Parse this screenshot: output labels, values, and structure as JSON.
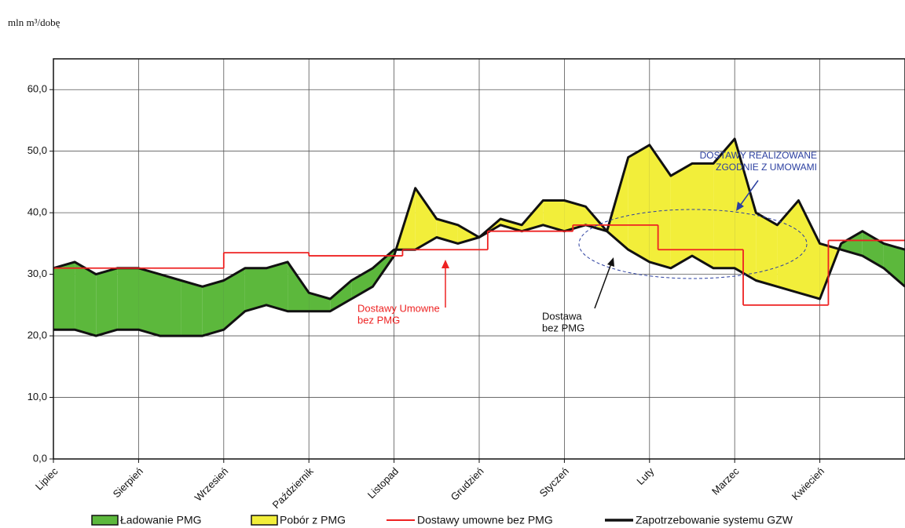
{
  "chart_data": {
    "type": "area-between",
    "ylabel": "mln m³/dobę",
    "xlim": [
      0,
      10
    ],
    "ylim": [
      0,
      65
    ],
    "yticks": [
      {
        "value": 0,
        "label": "0,0"
      },
      {
        "value": 10,
        "label": "10,0"
      },
      {
        "value": 20,
        "label": "20,0"
      },
      {
        "value": 30,
        "label": "30,0"
      },
      {
        "value": 40,
        "label": "40,0"
      },
      {
        "value": 50,
        "label": "50,0"
      },
      {
        "value": 60,
        "label": "60,0"
      }
    ],
    "xticks": [
      {
        "value": 0,
        "label": "Lipiec"
      },
      {
        "value": 1,
        "label": "Sierpień"
      },
      {
        "value": 2,
        "label": "Wrzesień"
      },
      {
        "value": 3,
        "label": "Październik"
      },
      {
        "value": 4,
        "label": "Listopad"
      },
      {
        "value": 5,
        "label": "Grudzień"
      },
      {
        "value": 6,
        "label": "Styczeń"
      },
      {
        "value": 7,
        "label": "Luty"
      },
      {
        "value": 8,
        "label": "Marzec"
      },
      {
        "value": 9,
        "label": "Kwiecień"
      }
    ],
    "grid": true,
    "x": [
      0,
      0.25,
      0.5,
      0.75,
      1,
      1.25,
      1.5,
      1.75,
      2,
      2.25,
      2.5,
      2.75,
      3,
      3.25,
      3.5,
      3.75,
      4,
      4.25,
      4.5,
      4.75,
      5,
      5.25,
      5.5,
      5.75,
      6,
      6.25,
      6.5,
      6.75,
      7,
      7.25,
      7.5,
      7.75,
      8,
      8.25,
      8.5,
      8.75,
      9,
      9.25,
      9.5,
      9.75,
      10
    ],
    "supply_values": [
      31,
      32,
      30,
      31,
      31,
      30,
      29,
      28,
      29,
      31,
      31,
      32,
      27,
      26,
      29,
      31,
      34,
      34,
      36,
      35,
      36,
      38,
      37,
      38,
      37,
      38,
      37,
      34,
      32,
      31,
      33,
      31,
      31,
      29,
      28,
      27,
      26,
      35,
      37,
      35,
      34
    ],
    "areas": [
      {
        "name": "Ładowanie PMG",
        "color": "#5cb83c"
      },
      {
        "name": "Pobór z PMG",
        "color": "#f2ee3a"
      }
    ],
    "series": [
      {
        "name": "Dostawy umowne bez PMG",
        "color": "#ee2222",
        "style": "step",
        "x": [
          0,
          2,
          3,
          4.1,
          5.1,
          6.1,
          7.1,
          8.1,
          9.1
        ],
        "values": [
          31,
          33.5,
          33,
          34,
          37,
          38,
          34,
          25,
          35.5
        ]
      },
      {
        "name": "Zapotrzebowanie systemu GZW",
        "color": "#111111",
        "style": "line",
        "values": [
          21,
          21,
          20,
          21,
          21,
          20,
          20,
          20,
          21,
          24,
          25,
          24,
          24,
          24,
          26,
          28,
          33,
          44,
          39,
          38,
          36,
          39,
          38,
          42,
          42,
          41,
          37,
          49,
          51,
          46,
          48,
          48,
          52,
          40,
          38,
          42,
          35,
          34,
          33,
          31,
          28
        ]
      }
    ],
    "annotations": [
      {
        "lines": [
          "Dostawy Umowne",
          "bez PMG"
        ],
        "color": "#ee2222"
      },
      {
        "lines": [
          "Dostawa",
          "bez PMG"
        ],
        "color": "#111111"
      },
      {
        "lines": [
          "DOSTAWY REALIZOWANE",
          "ZGODNIE Z UMOWAMI"
        ],
        "color": "#2b3fa0"
      }
    ]
  }
}
